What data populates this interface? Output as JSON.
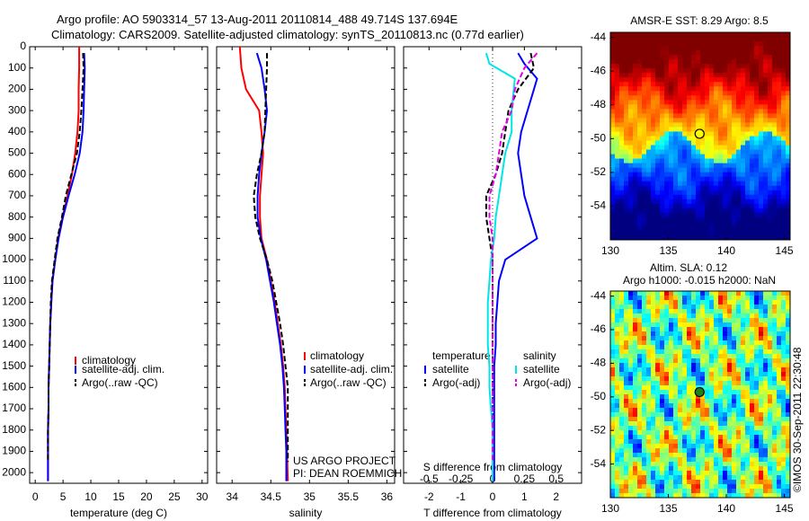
{
  "header": {
    "line1": "Argo profile: AO 5903314_57 13-Aug-2011 20110814_488 49.714S 137.694E",
    "line2": "Climatology: CARS2009. Satellite-adjusted climatology: synTS_20110813.nc (0.77d earlier)"
  },
  "colors": {
    "climatology": "#ff0000",
    "satellite": "#0000ff",
    "argo": "#000000",
    "s_satellite": "#00e6e6",
    "s_argo": "#e600e6"
  },
  "chart_data": [
    {
      "type": "line",
      "xlabel": "temperature (deg C)",
      "ylabel": "",
      "xlim": [
        -1,
        31
      ],
      "ylim": [
        2050,
        0
      ],
      "y_reversed": true,
      "xticks": [
        0,
        5,
        10,
        15,
        20,
        25,
        30
      ],
      "yticks": [
        0,
        100,
        200,
        300,
        400,
        500,
        600,
        700,
        800,
        900,
        1000,
        1100,
        1200,
        1300,
        1400,
        1500,
        1600,
        1700,
        1800,
        1900,
        2000
      ],
      "legend": [
        "climatology",
        "satellite-adj. clim.",
        "Argo(..raw -QC)"
      ],
      "series": [
        {
          "name": "climatology",
          "color": "#ff0000",
          "dash": false,
          "x": [
            7.9,
            7.9,
            7.8,
            7.8,
            7.6,
            7.2,
            6.6,
            5.8,
            4.9,
            4.1,
            3.6,
            3.1,
            2.9,
            2.7,
            2.6,
            2.5,
            2.4,
            2.4,
            2.3,
            2.3,
            2.3
          ],
          "y": [
            0,
            100,
            200,
            300,
            400,
            500,
            600,
            700,
            800,
            900,
            1000,
            1100,
            1200,
            1300,
            1400,
            1500,
            1600,
            1700,
            1800,
            1900,
            2040
          ]
        },
        {
          "name": "satellite-adj. clim.",
          "color": "#0000ff",
          "dash": false,
          "x": [
            8.8,
            8.9,
            8.8,
            8.7,
            8.5,
            8.0,
            7.1,
            6.0,
            5.0,
            4.2,
            3.6,
            3.1,
            2.9,
            2.7,
            2.6,
            2.5,
            2.4,
            2.4,
            2.3,
            2.3,
            2.3
          ],
          "y": [
            30,
            100,
            200,
            300,
            400,
            500,
            600,
            700,
            800,
            900,
            1000,
            1100,
            1200,
            1300,
            1400,
            1500,
            1600,
            1700,
            1800,
            1900,
            2040
          ]
        },
        {
          "name": "Argo(..raw -QC)",
          "color": "#000000",
          "dash": true,
          "x": [
            8.6,
            8.7,
            8.5,
            8.3,
            8.0,
            7.5,
            6.5,
            5.5,
            4.8,
            4.0,
            3.5,
            3.0,
            2.8,
            2.7,
            2.6,
            2.5,
            2.4,
            2.4,
            2.3,
            2.3
          ],
          "y": [
            30,
            100,
            200,
            300,
            400,
            500,
            600,
            700,
            800,
            900,
            1000,
            1100,
            1200,
            1300,
            1400,
            1500,
            1600,
            1700,
            1800,
            1950
          ]
        }
      ]
    },
    {
      "type": "line",
      "xlabel": "salinity",
      "ylabel": "",
      "xlim": [
        33.8,
        36.1
      ],
      "ylim": [
        2050,
        0
      ],
      "y_reversed": true,
      "xticks": [
        34,
        34.5,
        35,
        35.5,
        36
      ],
      "legend": [
        "climatology",
        "satellite-adj. clim.",
        "Argo(..raw -QC)"
      ],
      "annotation": [
        "US ARGO PROJECT",
        "PI: DEAN ROEMMICH"
      ],
      "series": [
        {
          "name": "climatology",
          "color": "#ff0000",
          "dash": false,
          "x": [
            34.1,
            34.12,
            34.18,
            34.35,
            34.38,
            34.4,
            34.38,
            34.36,
            34.36,
            34.38,
            34.45,
            34.5,
            34.55,
            34.59,
            34.63,
            34.66,
            34.68,
            34.69,
            34.7,
            34.71,
            34.72
          ],
          "y": [
            0,
            100,
            200,
            300,
            400,
            500,
            600,
            700,
            800,
            900,
            1000,
            1100,
            1200,
            1300,
            1400,
            1500,
            1600,
            1700,
            1800,
            1900,
            2040
          ]
        },
        {
          "name": "satellite-adj. clim.",
          "color": "#0000ff",
          "dash": false,
          "x": [
            34.32,
            34.38,
            34.42,
            34.45,
            34.42,
            34.38,
            34.35,
            34.33,
            34.33,
            34.37,
            34.44,
            34.49,
            34.54,
            34.58,
            34.62,
            34.65,
            34.67,
            34.68,
            34.69,
            34.7,
            34.7
          ],
          "y": [
            30,
            100,
            200,
            300,
            400,
            500,
            600,
            700,
            800,
            900,
            1000,
            1100,
            1200,
            1300,
            1400,
            1500,
            1600,
            1700,
            1800,
            1900,
            2040
          ]
        },
        {
          "name": "Argo(..raw -QC)",
          "color": "#000000",
          "dash": true,
          "x": [
            34.45,
            34.45,
            34.44,
            34.43,
            34.42,
            34.38,
            34.32,
            34.28,
            34.3,
            34.36,
            34.45,
            34.52,
            34.57,
            34.62,
            34.66,
            34.69,
            34.72,
            34.72,
            34.72,
            34.72
          ],
          "y": [
            30,
            100,
            200,
            300,
            400,
            500,
            600,
            700,
            800,
            900,
            1000,
            1100,
            1200,
            1300,
            1400,
            1500,
            1600,
            1700,
            1800,
            1950
          ]
        }
      ]
    },
    {
      "type": "line",
      "xlabel": "T difference from climatology",
      "xlabel2": "S difference from climatology",
      "xlim": [
        -2.8,
        2.8
      ],
      "ylim": [
        2050,
        0
      ],
      "y_reversed": true,
      "xticks": [
        -2,
        -1,
        0,
        1,
        2
      ],
      "xticks_s": [
        "-0.5",
        "-0.25",
        "0",
        "0.25",
        "0.5"
      ],
      "legend_t": [
        "temperature",
        "satellite",
        "Argo(-adj)"
      ],
      "legend_s": [
        "salinity",
        "satellite",
        "Argo(-adj)"
      ],
      "series": [
        {
          "name": "satellite",
          "color": "#0000ff",
          "dash": false,
          "x": [
            0.8,
            1.0,
            1.4,
            1.1,
            0.9,
            0.8,
            0.9,
            1.0,
            1.2,
            1.4,
            0.4,
            0.2,
            0.15,
            0.1,
            0.1,
            0.05,
            0.05,
            0.05,
            0.05,
            0.05,
            0.05
          ],
          "y": [
            30,
            80,
            150,
            300,
            400,
            500,
            600,
            700,
            800,
            900,
            1000,
            1100,
            1200,
            1300,
            1400,
            1500,
            1600,
            1700,
            1800,
            1900,
            2040
          ]
        },
        {
          "name": "Argo(-adj)",
          "color": "#000000",
          "dash": true,
          "x": [
            1.2,
            1.3,
            0.8,
            0.5,
            0.4,
            0.3,
            0.1,
            -0.2,
            -0.2,
            -0.1,
            0,
            0,
            0,
            0,
            0,
            0,
            0,
            0,
            0,
            0
          ],
          "y": [
            30,
            100,
            200,
            300,
            400,
            500,
            600,
            700,
            800,
            900,
            1000,
            1100,
            1200,
            1300,
            1400,
            1500,
            1600,
            1700,
            1800,
            1950
          ]
        },
        {
          "name": "satellite",
          "color": "#00e6e6",
          "dash": false,
          "x": [
            -0.2,
            -0.1,
            0.7,
            0.6,
            0.6,
            0.4,
            0.3,
            0.2,
            0.1,
            0.05,
            -0.05,
            -0.1,
            -0.15,
            -0.15,
            -0.15,
            -0.1,
            -0.1,
            -0.05,
            0,
            0,
            0
          ],
          "y": [
            30,
            80,
            150,
            300,
            400,
            500,
            600,
            700,
            800,
            900,
            1000,
            1100,
            1200,
            1300,
            1400,
            1500,
            1600,
            1700,
            1800,
            1900,
            2040
          ]
        },
        {
          "name": "Argo(-adj)",
          "color": "#e600e6",
          "dash": true,
          "x": [
            1.4,
            1.0,
            0.7,
            0.6,
            0.3,
            0.2,
            0.1,
            -0.1,
            -0.1,
            0,
            0,
            0,
            0,
            0,
            0,
            0,
            0,
            0,
            0,
            0
          ],
          "y": [
            30,
            100,
            200,
            300,
            400,
            500,
            600,
            700,
            800,
            900,
            1000,
            1100,
            1200,
            1300,
            1400,
            1500,
            1600,
            1700,
            1800,
            1950
          ]
        }
      ]
    },
    {
      "type": "heatmap",
      "title": "AMSR-E SST: 8.29 Argo: 8.5",
      "xlim": [
        130,
        145.5
      ],
      "ylim": [
        -56,
        -43.7
      ],
      "xticks": [
        130,
        135,
        140,
        145
      ],
      "yticks": [
        -44,
        -46,
        -48,
        -50,
        -52,
        -54
      ],
      "marker": {
        "lon": 137.694,
        "lat": -49.714,
        "color": "#ffff00"
      }
    },
    {
      "type": "heatmap",
      "title": [
        "Altim. SLA: 0.12",
        "Argo h1000: -0.015 h2000: NaN"
      ],
      "xlim": [
        130,
        145.5
      ],
      "ylim": [
        -56,
        -43.7
      ],
      "xticks": [
        130,
        135,
        140,
        145
      ],
      "yticks": [
        -44,
        -46,
        -48,
        -50,
        -52,
        -54
      ],
      "marker": {
        "lon": 137.694,
        "lat": -49.714,
        "color": "#208020"
      }
    }
  ],
  "footer": "©IMOS 30-Sep-2011 22:30:48"
}
